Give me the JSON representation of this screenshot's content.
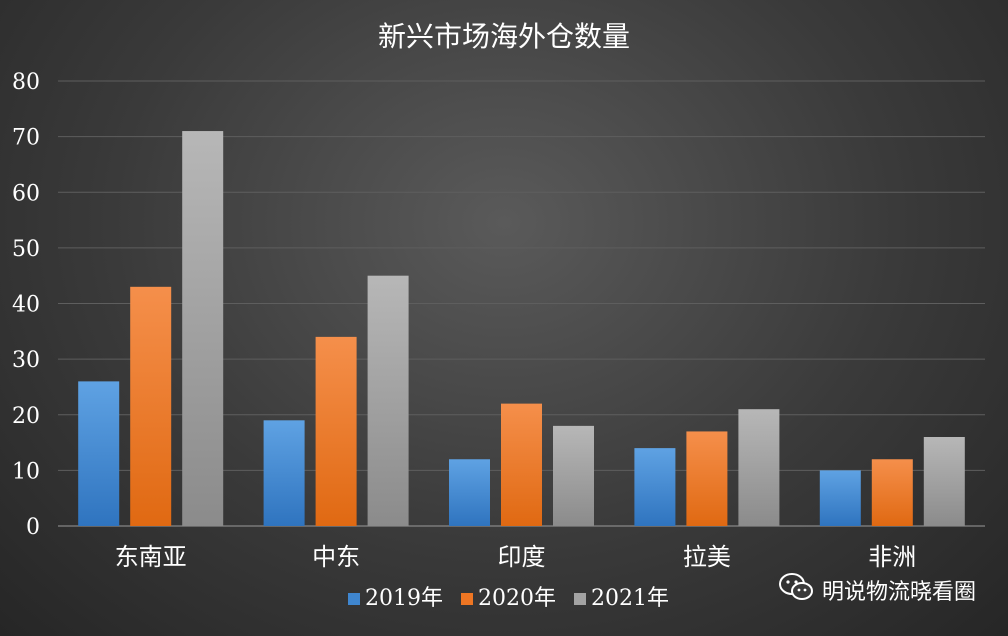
{
  "chart_data": {
    "type": "bar",
    "title": "新兴市场海外仓数量",
    "categories": [
      "东南亚",
      "中东",
      "印度",
      "拉美",
      "非洲"
    ],
    "series": [
      {
        "name": "2019年",
        "values": [
          26,
          19,
          12,
          14,
          10
        ],
        "color": "#3f86cf"
      },
      {
        "name": "2020年",
        "values": [
          43,
          34,
          22,
          17,
          12
        ],
        "color": "#ee7623"
      },
      {
        "name": "2021年",
        "values": [
          71,
          45,
          18,
          21,
          16
        ],
        "color": "#a3a3a3"
      }
    ],
    "ylim": [
      0,
      80
    ],
    "yticks": [
      0,
      10,
      20,
      30,
      40,
      50,
      60,
      70,
      80
    ],
    "grid": true,
    "legend": "bottom"
  },
  "watermark": {
    "icon": "wechat-icon",
    "text": "明说物流晓看圈"
  }
}
